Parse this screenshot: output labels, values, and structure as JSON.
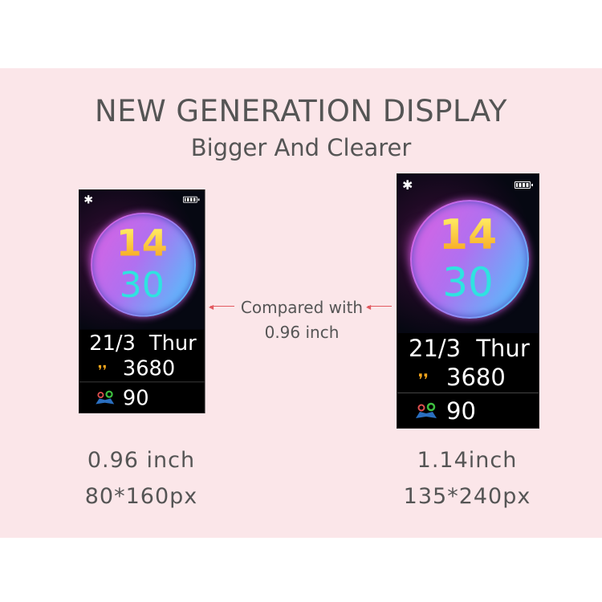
{
  "header": {
    "title": "NEW GENERATION DISPLAY",
    "subtitle": "Bigger And Clearer"
  },
  "comparison": {
    "line1": "Compared with",
    "line2": "0.96 inch",
    "arrow_color": "#e25a60"
  },
  "watch_face": {
    "hour": "14",
    "minute": "30",
    "date": "21/3 Thur",
    "steps": "3680",
    "distance": "90",
    "icons": [
      "bluetooth-icon",
      "battery-icon",
      "footsteps-icon",
      "map-icon"
    ],
    "colors": {
      "hour": "#f7c21b",
      "minute": "#2fe3e0"
    }
  },
  "small_display": {
    "size": "0.96 inch",
    "resolution": "80*160px"
  },
  "large_display": {
    "size": "1.14inch",
    "resolution": "135*240px"
  }
}
